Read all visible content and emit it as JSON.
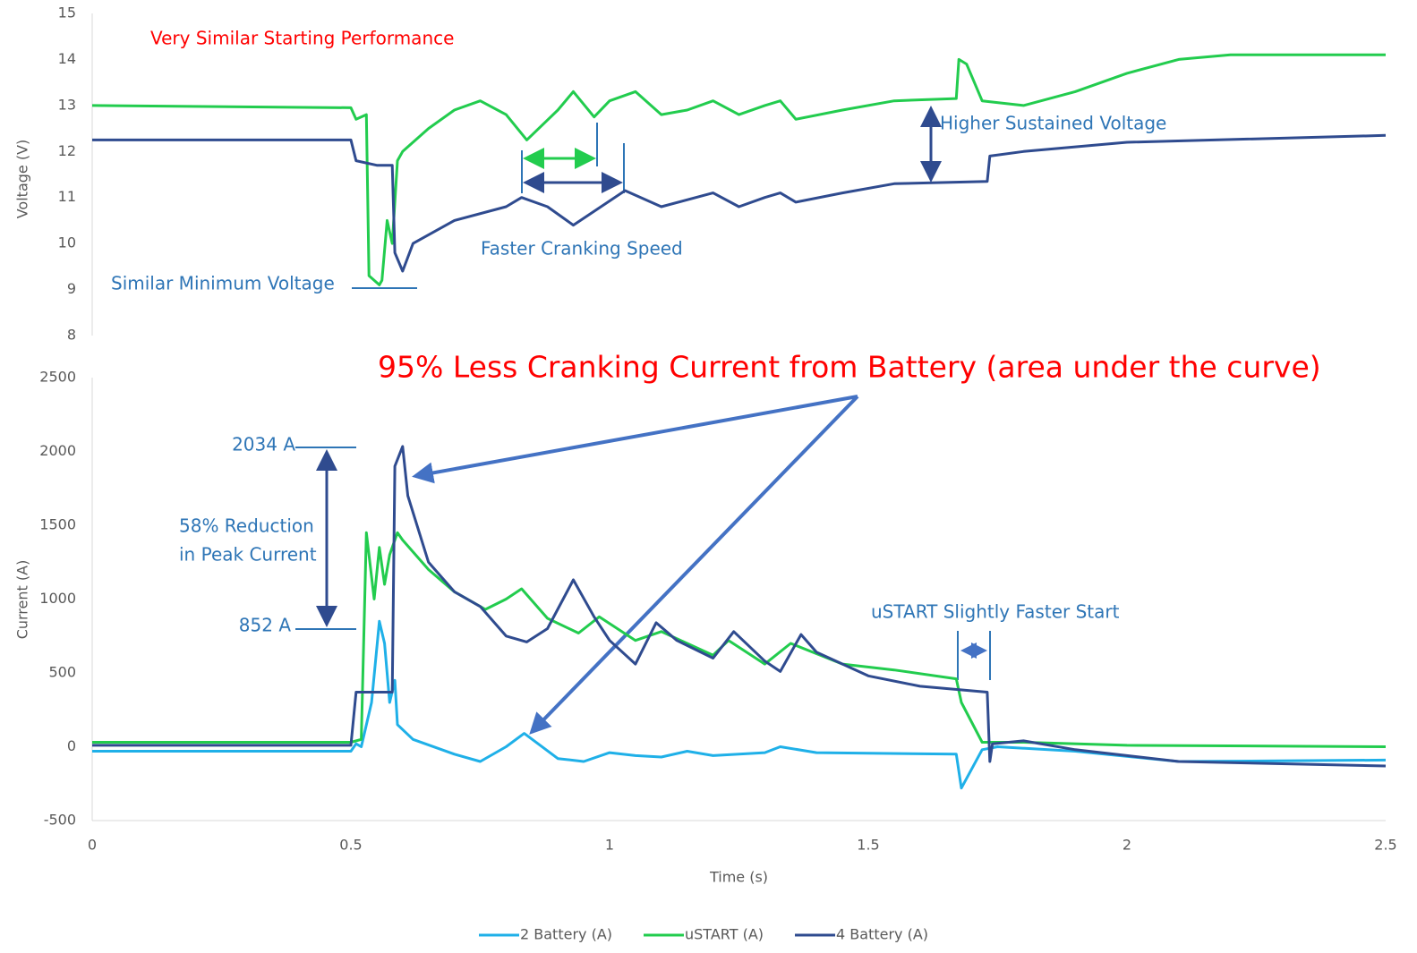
{
  "chart_data": [
    {
      "type": "line",
      "y_label": "Voltage (V)",
      "xlim": [
        0,
        2.5
      ],
      "ylim": [
        8,
        15
      ],
      "yticks": [
        8,
        9,
        10,
        11,
        12,
        13,
        14,
        15
      ],
      "series": [
        {
          "color": "#22cc4e",
          "x": [
            0,
            0.5,
            0.51,
            0.53,
            0.535,
            0.555,
            0.56,
            0.57,
            0.58,
            0.59,
            0.6,
            0.65,
            0.7,
            0.75,
            0.8,
            0.84,
            0.9,
            0.93,
            0.97,
            1.0,
            1.05,
            1.1,
            1.15,
            1.2,
            1.25,
            1.3,
            1.33,
            1.36,
            1.45,
            1.55,
            1.67,
            1.675,
            1.69,
            1.72,
            1.8,
            1.9,
            2.0,
            2.1,
            2.2,
            2.5
          ],
          "values": [
            13.0,
            12.95,
            12.7,
            12.8,
            9.3,
            9.1,
            9.2,
            10.5,
            10.0,
            11.8,
            12.0,
            12.5,
            12.9,
            13.1,
            12.8,
            12.25,
            12.9,
            13.3,
            12.75,
            13.1,
            13.3,
            12.8,
            12.9,
            13.1,
            12.8,
            13.0,
            13.1,
            12.7,
            12.9,
            13.1,
            13.15,
            14.0,
            13.9,
            13.1,
            13.0,
            13.3,
            13.7,
            14.0,
            14.1,
            14.1
          ]
        },
        {
          "color": "#2f4b8f",
          "x": [
            0,
            0.5,
            0.51,
            0.55,
            0.58,
            0.585,
            0.6,
            0.62,
            0.7,
            0.8,
            0.83,
            0.88,
            0.93,
            0.97,
            1.03,
            1.1,
            1.2,
            1.25,
            1.3,
            1.33,
            1.36,
            1.45,
            1.55,
            1.73,
            1.735,
            1.8,
            2.0,
            2.5
          ],
          "values": [
            12.25,
            12.25,
            11.8,
            11.7,
            11.7,
            9.8,
            9.4,
            10.0,
            10.5,
            10.8,
            11.0,
            10.8,
            10.4,
            10.7,
            11.15,
            10.8,
            11.1,
            10.8,
            11.0,
            11.1,
            10.9,
            11.1,
            11.3,
            11.35,
            11.9,
            12.0,
            12.2,
            12.35
          ]
        }
      ],
      "annotations": [
        {
          "text": "Very Similar Starting Performance",
          "color": "#ff0000"
        },
        {
          "text": "Higher Sustained Voltage",
          "color": "#2e75b6"
        },
        {
          "text": "Faster Cranking Speed",
          "color": "#2e75b6"
        },
        {
          "text": "Similar Minimum Voltage",
          "color": "#2e75b6"
        }
      ]
    },
    {
      "type": "line",
      "y_label": "Current (A)",
      "x_label": "Time (s)",
      "xlim": [
        0,
        2.5
      ],
      "xticks": [
        0,
        0.5,
        1,
        1.5,
        2,
        2.5
      ],
      "ylim": [
        -500,
        2500
      ],
      "yticks": [
        -500,
        0,
        500,
        1000,
        1500,
        2000,
        2500
      ],
      "series": [
        {
          "name": "2 Battery (A)",
          "color": "#1fb0e8",
          "x": [
            0,
            0.5,
            0.51,
            0.52,
            0.54,
            0.555,
            0.565,
            0.575,
            0.585,
            0.59,
            0.62,
            0.7,
            0.75,
            0.8,
            0.835,
            0.9,
            0.95,
            1.0,
            1.05,
            1.1,
            1.15,
            1.2,
            1.3,
            1.33,
            1.4,
            1.67,
            1.68,
            1.72,
            1.75,
            1.9,
            2.1,
            2.5
          ],
          "values": [
            -30,
            -30,
            20,
            0,
            300,
            850,
            700,
            300,
            450,
            150,
            50,
            -50,
            -100,
            0,
            90,
            -80,
            -100,
            -40,
            -60,
            -70,
            -30,
            -60,
            -40,
            0,
            -40,
            -50,
            -280,
            -20,
            0,
            -30,
            -100,
            -90
          ]
        },
        {
          "name": "uSTART (A)",
          "color": "#22cc4e",
          "x": [
            0,
            0.5,
            0.52,
            0.53,
            0.545,
            0.555,
            0.565,
            0.575,
            0.59,
            0.6,
            0.65,
            0.7,
            0.76,
            0.8,
            0.83,
            0.88,
            0.94,
            0.98,
            1.05,
            1.1,
            1.2,
            1.23,
            1.3,
            1.35,
            1.45,
            1.55,
            1.67,
            1.68,
            1.72,
            1.8,
            2.0,
            2.5
          ],
          "values": [
            30,
            30,
            50,
            1450,
            1000,
            1350,
            1100,
            1300,
            1450,
            1400,
            1200,
            1050,
            930,
            1000,
            1070,
            870,
            770,
            880,
            720,
            780,
            620,
            720,
            560,
            700,
            560,
            520,
            460,
            300,
            30,
            30,
            10,
            0
          ]
        },
        {
          "name": "4 Battery (A)",
          "color": "#2f4b8f",
          "x": [
            0,
            0.5,
            0.51,
            0.58,
            0.585,
            0.6,
            0.61,
            0.65,
            0.7,
            0.75,
            0.8,
            0.84,
            0.88,
            0.93,
            0.97,
            1.0,
            1.05,
            1.09,
            1.13,
            1.2,
            1.24,
            1.3,
            1.33,
            1.37,
            1.4,
            1.5,
            1.6,
            1.73,
            1.735,
            1.74,
            1.8,
            1.9,
            2.1,
            2.5
          ],
          "values": [
            10,
            10,
            370,
            370,
            1900,
            2034,
            1700,
            1250,
            1050,
            950,
            750,
            710,
            800,
            1130,
            880,
            720,
            560,
            840,
            720,
            600,
            780,
            580,
            510,
            760,
            640,
            480,
            410,
            370,
            -100,
            20,
            40,
            -20,
            -100,
            -130
          ]
        }
      ],
      "annotations": [
        {
          "text": "95% Less Cranking Current from Battery (area under the curve)",
          "color": "#ff0000"
        },
        {
          "text": "2034 A",
          "color": "#2e75b6"
        },
        {
          "text": "58% Reduction",
          "color": "#2e75b6"
        },
        {
          "text": "in Peak Current",
          "color": "#2e75b6"
        },
        {
          "text": "852 A",
          "color": "#2e75b6"
        },
        {
          "text": "uSTART Slightly Faster Start",
          "color": "#2e75b6"
        }
      ]
    }
  ]
}
